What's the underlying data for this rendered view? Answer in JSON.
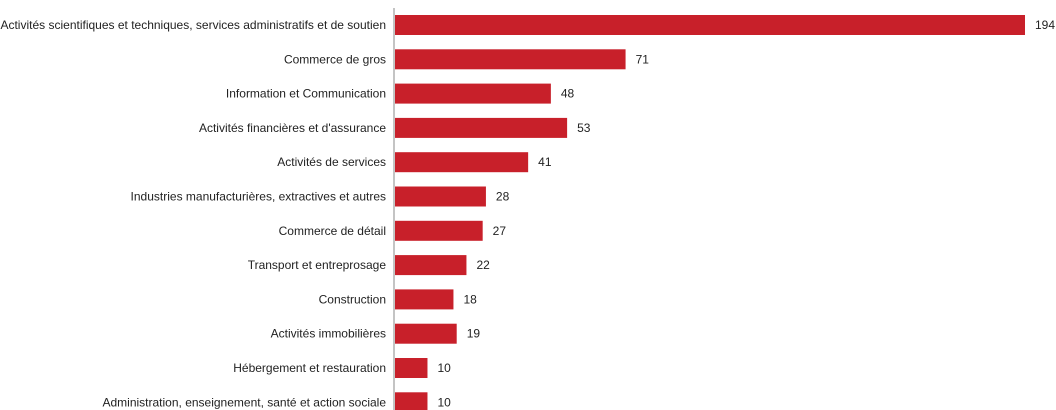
{
  "chart_data": {
    "type": "bar",
    "orientation": "horizontal",
    "categories": [
      "Activités scientifiques et techniques, services administratifs et de soutien",
      "Commerce de gros",
      "Information et Communication",
      "Activités financières et d'assurance",
      "Activités de services",
      "Industries manufacturières, extractives et autres",
      "Commerce de détail",
      "Transport et entreprosage",
      "Construction",
      "Activités immobilières",
      "Hébergement et restauration",
      "Administration, enseignement, santé et action sociale"
    ],
    "values": [
      194,
      71,
      48,
      53,
      41,
      28,
      27,
      22,
      18,
      19,
      10,
      10
    ],
    "xlim": [
      0,
      194
    ],
    "grid": false,
    "legend": "none",
    "data_labels": true,
    "bar_color": "#c8202a",
    "axis_color": "#888888"
  }
}
